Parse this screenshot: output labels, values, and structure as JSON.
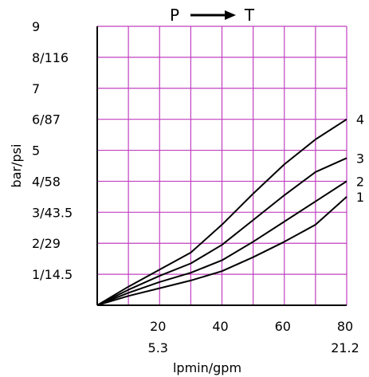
{
  "chart_data": {
    "type": "line",
    "title_from": "P",
    "title_to": "T",
    "xlabel": "lpmin/gpm",
    "ylabel": "bar/psi",
    "xlim": [
      0,
      80
    ],
    "ylim": [
      0,
      9
    ],
    "grid": true,
    "grid_color": "#c040c0",
    "x_ticks": [
      {
        "value": 20,
        "label": "20"
      },
      {
        "value": 40,
        "label": "40"
      },
      {
        "value": 60,
        "label": "60"
      },
      {
        "value": 80,
        "label": "80"
      }
    ],
    "x_ticks_secondary": [
      {
        "value": 20,
        "label": "5.3"
      },
      {
        "value": 80,
        "label": "21.2"
      }
    ],
    "y_ticks": [
      {
        "value": 1,
        "label": "1/14.5"
      },
      {
        "value": 2,
        "label": "2/29"
      },
      {
        "value": 3,
        "label": "3/43.5"
      },
      {
        "value": 4,
        "label": "4/58"
      },
      {
        "value": 5,
        "label": "5"
      },
      {
        "value": 6,
        "label": "6/87"
      },
      {
        "value": 7,
        "label": "7"
      },
      {
        "value": 8,
        "label": "8/116"
      },
      {
        "value": 9,
        "label": "9"
      }
    ],
    "series": [
      {
        "name": "1",
        "x": [
          0,
          10,
          20,
          30,
          40,
          50,
          60,
          70,
          80
        ],
        "y": [
          0,
          0.3,
          0.55,
          0.8,
          1.1,
          1.55,
          2.05,
          2.6,
          3.5
        ]
      },
      {
        "name": "2",
        "x": [
          0,
          10,
          20,
          30,
          40,
          50,
          60,
          70,
          80
        ],
        "y": [
          0,
          0.4,
          0.75,
          1.05,
          1.45,
          2.05,
          2.7,
          3.35,
          4.0
        ]
      },
      {
        "name": "3",
        "x": [
          0,
          10,
          20,
          30,
          40,
          50,
          60,
          70,
          80
        ],
        "y": [
          0,
          0.5,
          0.95,
          1.35,
          1.95,
          2.75,
          3.55,
          4.3,
          4.75
        ]
      },
      {
        "name": "4",
        "x": [
          0,
          10,
          20,
          30,
          40,
          50,
          60,
          70,
          80
        ],
        "y": [
          0,
          0.6,
          1.15,
          1.7,
          2.6,
          3.6,
          4.55,
          5.35,
          6.0
        ]
      }
    ]
  }
}
